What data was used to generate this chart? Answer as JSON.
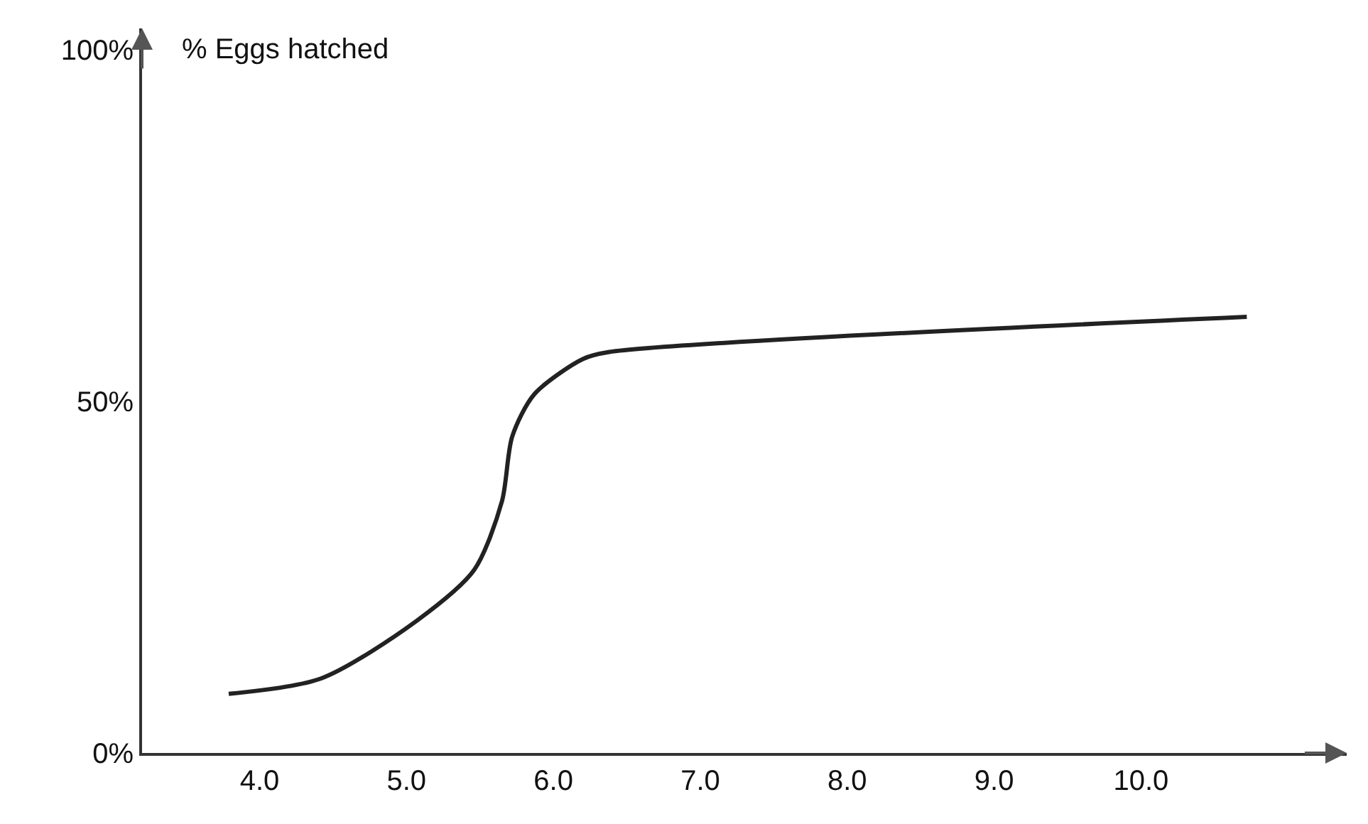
{
  "chart_data": {
    "type": "line",
    "ylabel": "% Eggs hatched",
    "x": [
      3.79,
      4.42,
      5.07,
      5.46,
      5.65,
      5.72,
      5.87,
      6.2,
      6.38,
      10.72
    ],
    "series": [
      {
        "color": "#222222",
        "values": [
          8.4,
          10.6,
          18.8,
          26,
          35.8,
          45,
          51,
          56,
          57,
          62
        ]
      }
    ],
    "xlim": [
      3.2,
      11.4
    ],
    "ylim": [
      0,
      103
    ],
    "xticks": [
      {
        "value": 4,
        "label": "4.0"
      },
      {
        "value": 5,
        "label": "5.0"
      },
      {
        "value": 6,
        "label": "6.0"
      },
      {
        "value": 7,
        "label": "7.0"
      },
      {
        "value": 8,
        "label": "8.0"
      },
      {
        "value": 9,
        "label": "9.0"
      },
      {
        "value": 10,
        "label": "10.0"
      }
    ],
    "yticks": [
      {
        "value": 0,
        "label": "0%"
      },
      {
        "value": 50,
        "label": "50%"
      },
      {
        "value": 100,
        "label": "100%"
      }
    ],
    "marker": "none",
    "line_style": "solid"
  }
}
